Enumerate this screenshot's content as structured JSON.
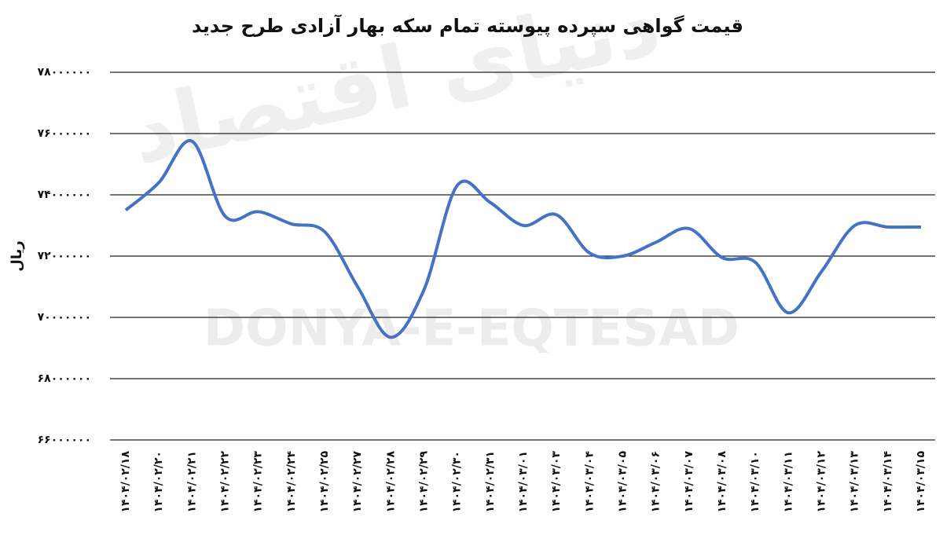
{
  "chart_data": {
    "type": "line",
    "title": "قیمت گواهی سپرده پیوسته تمام سکه بهار آزادی طرح جدید",
    "y_label": "ریال",
    "watermark": "DONYA-E-EQTESAD",
    "watermark_fa": "دنیای اقتصاد",
    "categories": [
      "۱۴۰۴/۰۲/۱۸",
      "۱۴۰۴/۰۲/۲۰",
      "۱۴۰۴/۰۲/۲۱",
      "۱۴۰۴/۰۲/۲۲",
      "۱۴۰۴/۰۲/۲۳",
      "۱۴۰۴/۰۲/۲۴",
      "۱۴۰۴/۰۲/۲۵",
      "۱۴۰۴/۰۲/۲۷",
      "۱۴۰۴/۰۲/۲۸",
      "۱۴۰۴/۰۲/۲۹",
      "۱۴۰۴/۰۲/۳۰",
      "۱۴۰۴/۰۲/۳۱",
      "۱۴۰۴/۰۳/۰۱",
      "۱۴۰۴/۰۳/۰۳",
      "۱۴۰۴/۰۳/۰۴",
      "۱۴۰۴/۰۳/۰۵",
      "۱۴۰۴/۰۳/۰۶",
      "۱۴۰۴/۰۳/۰۷",
      "۱۴۰۴/۰۳/۰۸",
      "۱۴۰۴/۰۳/۱۰",
      "۱۴۰۴/۰۳/۱۱",
      "۱۴۰۴/۰۳/۱۲",
      "۱۴۰۴/۰۳/۱۳",
      "۱۴۰۴/۰۳/۱۴",
      "۱۴۰۴/۰۳/۱۵"
    ],
    "values": [
      73500000,
      74400000,
      75750000,
      73300000,
      73450000,
      73050000,
      72800000,
      71000000,
      69350000,
      70900000,
      74300000,
      73750000,
      73000000,
      73350000,
      72100000,
      72000000,
      72450000,
      72900000,
      71950000,
      71800000,
      70150000,
      71500000,
      73000000,
      72950000,
      72950000
    ],
    "color": "#4472c4",
    "ylim": [
      66000000,
      78000000
    ],
    "yticks": [
      {
        "value": 66000000,
        "label": "۶۶۰۰۰۰۰۰"
      },
      {
        "value": 68000000,
        "label": "۶۸۰۰۰۰۰۰"
      },
      {
        "value": 70000000,
        "label": "۷۰۰۰۰۰۰۰"
      },
      {
        "value": 72000000,
        "label": "۷۲۰۰۰۰۰۰"
      },
      {
        "value": 74000000,
        "label": "۷۴۰۰۰۰۰۰"
      },
      {
        "value": 76000000,
        "label": "۷۶۰۰۰۰۰۰"
      },
      {
        "value": 78000000,
        "label": "۷۸۰۰۰۰۰۰"
      }
    ],
    "grid": true
  }
}
